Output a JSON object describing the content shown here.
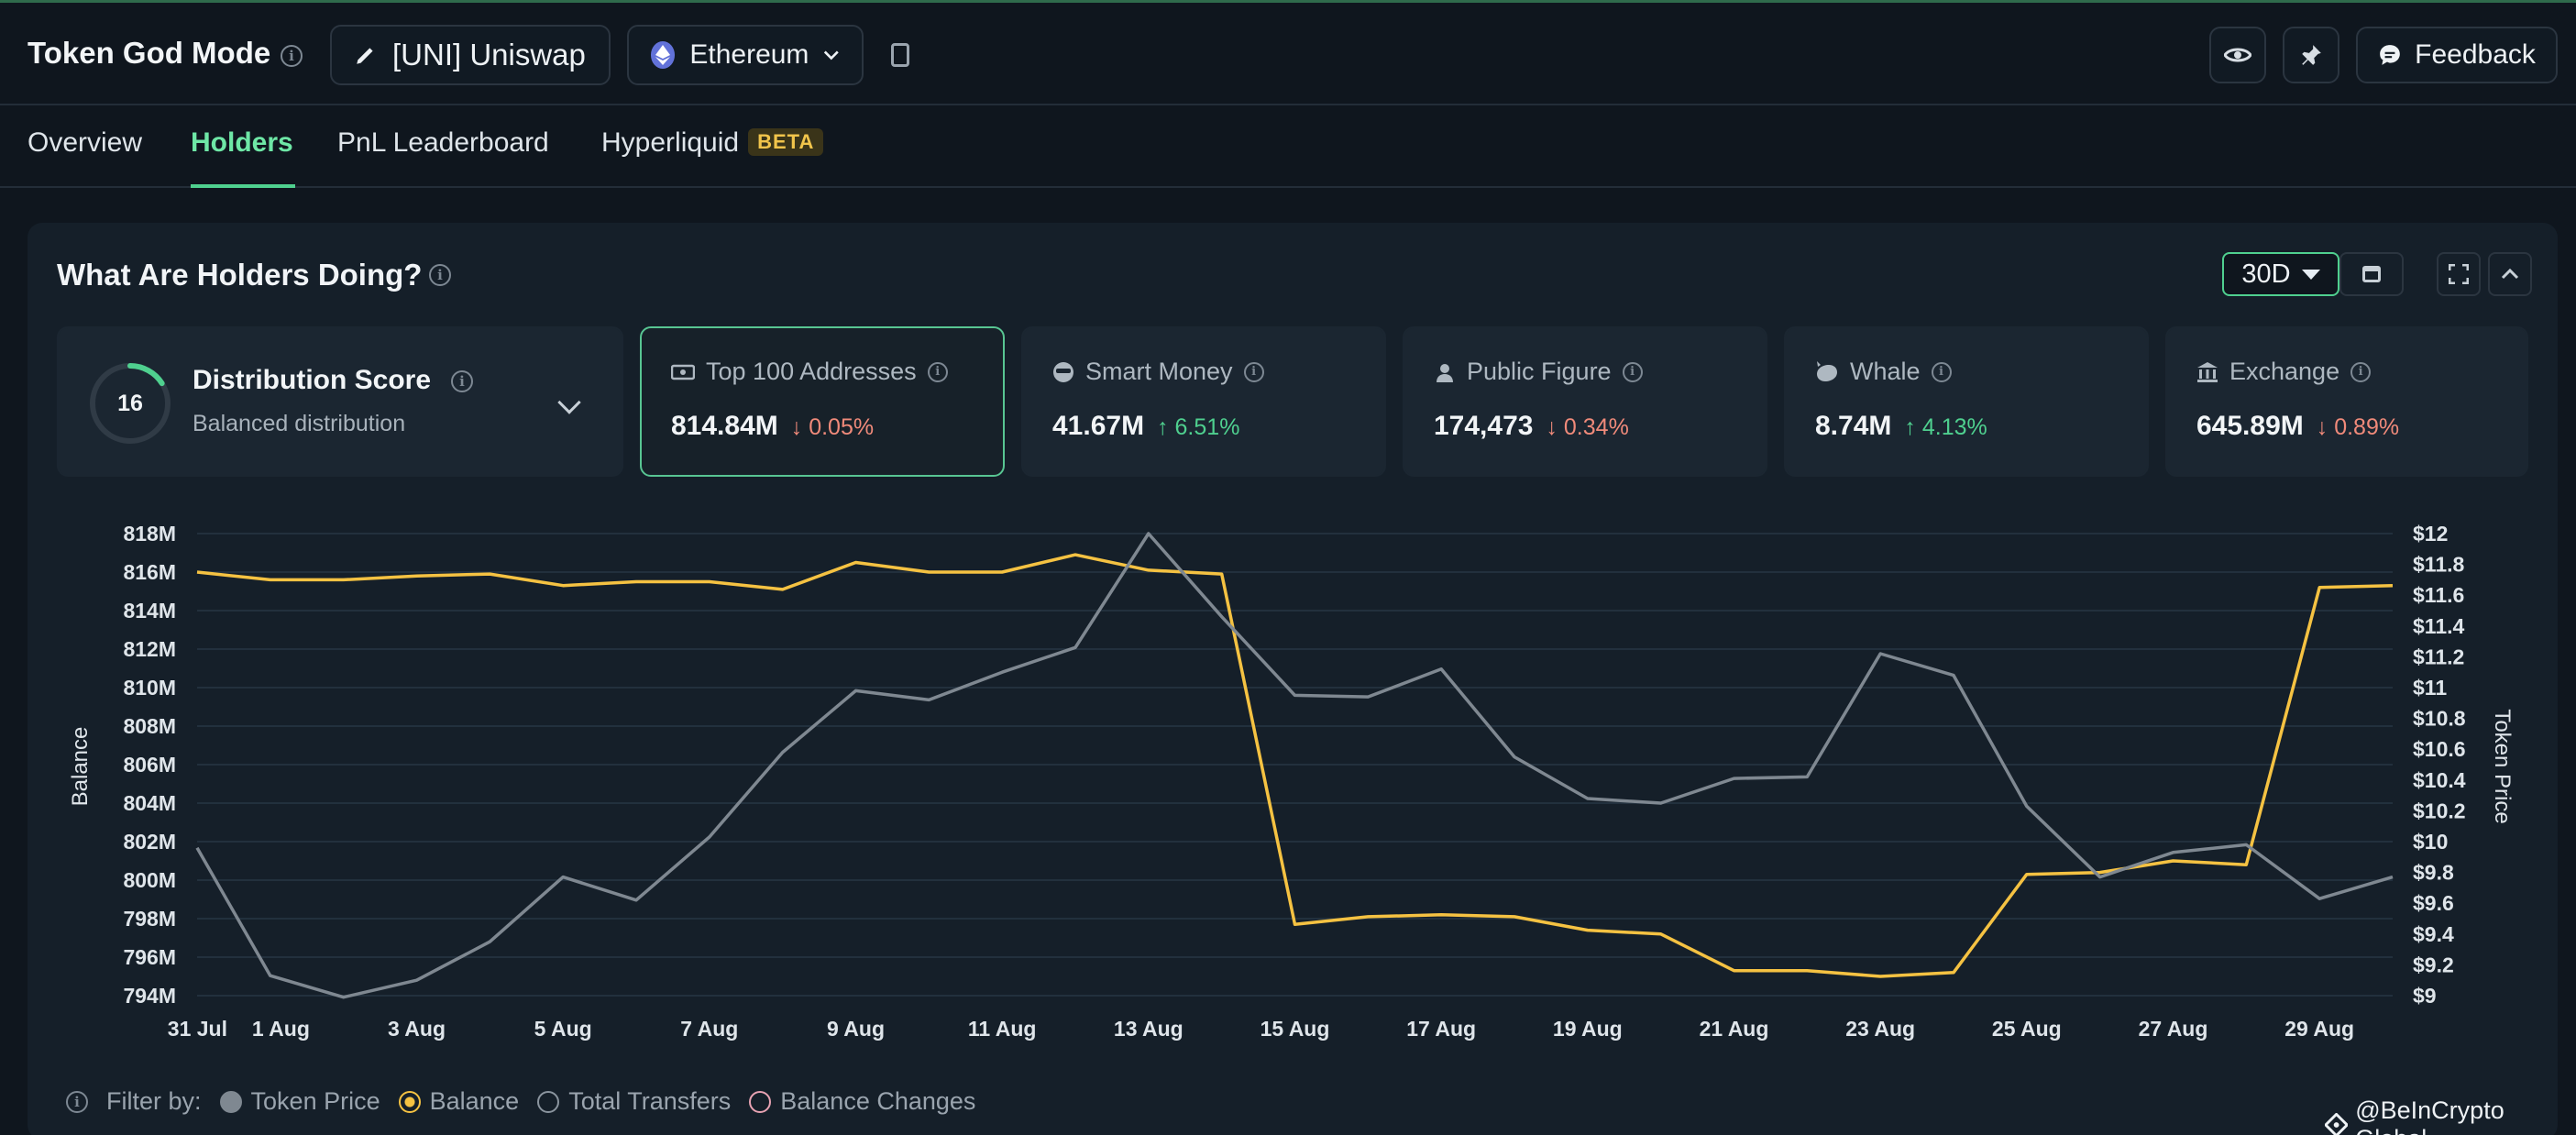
{
  "app": {
    "title": "Token God Mode",
    "token_label": "[UNI] Uniswap",
    "chain_label": "Ethereum",
    "feedback_label": "Feedback"
  },
  "tabs": [
    {
      "label": "Overview",
      "active": false
    },
    {
      "label": "Holders",
      "active": true
    },
    {
      "label": "PnL Leaderboard",
      "active": false
    },
    {
      "label": "Hyperliquid",
      "badge": "BETA",
      "active": false
    }
  ],
  "panel": {
    "title": "What Are Holders Doing?",
    "range": "30D"
  },
  "distribution": {
    "score": "16",
    "title": "Distribution Score",
    "subtitle": "Balanced distribution",
    "gauge_fraction": 0.16
  },
  "cards": [
    {
      "label": "Top 100 Addresses",
      "value": "814.84M",
      "change": "0.05%",
      "direction": "down",
      "icon": "money-icon",
      "selected": true
    },
    {
      "label": "Smart Money",
      "value": "41.67M",
      "change": "6.51%",
      "direction": "up",
      "icon": "sunglasses-icon",
      "selected": false
    },
    {
      "label": "Public Figure",
      "value": "174,473",
      "change": "0.34%",
      "direction": "down",
      "icon": "person-icon",
      "selected": false
    },
    {
      "label": "Whale",
      "value": "8.74M",
      "change": "4.13%",
      "direction": "up",
      "icon": "whale-icon",
      "selected": false
    },
    {
      "label": "Exchange",
      "value": "645.89M",
      "change": "0.89%",
      "direction": "down",
      "icon": "bank-icon",
      "selected": false
    }
  ],
  "filter": {
    "label": "Filter by:",
    "items": [
      {
        "label": "Token Price",
        "state": "filled-grey"
      },
      {
        "label": "Balance",
        "state": "selected-yellow"
      },
      {
        "label": "Total Transfers",
        "state": "empty"
      },
      {
        "label": "Balance Changes",
        "state": "empty-pink"
      }
    ]
  },
  "watermark": "@BeInCrypto Global",
  "colors": {
    "accent": "#4fd08f",
    "balance_line": "#f5c242",
    "price_line": "#7f8891",
    "down": "#f08a7a",
    "up": "#4fd08f"
  },
  "chart_data": {
    "type": "line",
    "xlabel": "",
    "ylabel": "Balance",
    "y2label": "Token Price",
    "x_ticks": [
      "31 Jul",
      "1 Aug",
      "3 Aug",
      "5 Aug",
      "7 Aug",
      "9 Aug",
      "11 Aug",
      "13 Aug",
      "15 Aug",
      "17 Aug",
      "19 Aug",
      "21 Aug",
      "23 Aug",
      "25 Aug",
      "27 Aug",
      "29 Aug"
    ],
    "y_ticks": [
      "794M",
      "796M",
      "798M",
      "800M",
      "802M",
      "804M",
      "806M",
      "808M",
      "810M",
      "812M",
      "814M",
      "816M",
      "818M"
    ],
    "y2_ticks": [
      "$9",
      "$9.2",
      "$9.4",
      "$9.6",
      "$9.8",
      "$10",
      "$10.2",
      "$10.4",
      "$10.6",
      "$10.8",
      "$11",
      "$11.2",
      "$11.4",
      "$11.6",
      "$11.8",
      "$12"
    ],
    "ylim": [
      794,
      818
    ],
    "y2lim": [
      9,
      12
    ],
    "x": [
      "31 Jul",
      "1 Aug",
      "2 Aug",
      "3 Aug",
      "4 Aug",
      "5 Aug",
      "6 Aug",
      "7 Aug",
      "8 Aug",
      "9 Aug",
      "10 Aug",
      "11 Aug",
      "12 Aug",
      "13 Aug",
      "14 Aug",
      "15 Aug",
      "16 Aug",
      "17 Aug",
      "18 Aug",
      "19 Aug",
      "20 Aug",
      "21 Aug",
      "22 Aug",
      "23 Aug",
      "24 Aug",
      "25 Aug",
      "26 Aug",
      "27 Aug",
      "28 Aug",
      "29 Aug",
      "30 Aug"
    ],
    "series": [
      {
        "name": "Balance",
        "axis": "left",
        "color": "#f5c242",
        "values": [
          816.0,
          815.6,
          815.6,
          815.8,
          815.9,
          815.3,
          815.5,
          815.5,
          815.1,
          816.5,
          816.0,
          816.0,
          816.9,
          816.1,
          815.9,
          797.7,
          798.1,
          798.2,
          798.1,
          797.4,
          797.2,
          795.3,
          795.3,
          795.0,
          795.2,
          800.3,
          800.4,
          801.0,
          800.8,
          815.2,
          815.3
        ]
      },
      {
        "name": "Token Price",
        "axis": "right",
        "color": "#7f8891",
        "values": [
          9.96,
          9.13,
          8.99,
          9.1,
          9.35,
          9.77,
          9.62,
          10.03,
          10.58,
          10.98,
          10.92,
          11.1,
          11.26,
          12.0,
          11.46,
          10.95,
          10.94,
          11.12,
          10.55,
          10.28,
          10.25,
          10.41,
          10.42,
          11.22,
          11.08,
          10.23,
          9.77,
          9.93,
          9.98,
          9.63,
          9.77
        ]
      }
    ]
  }
}
